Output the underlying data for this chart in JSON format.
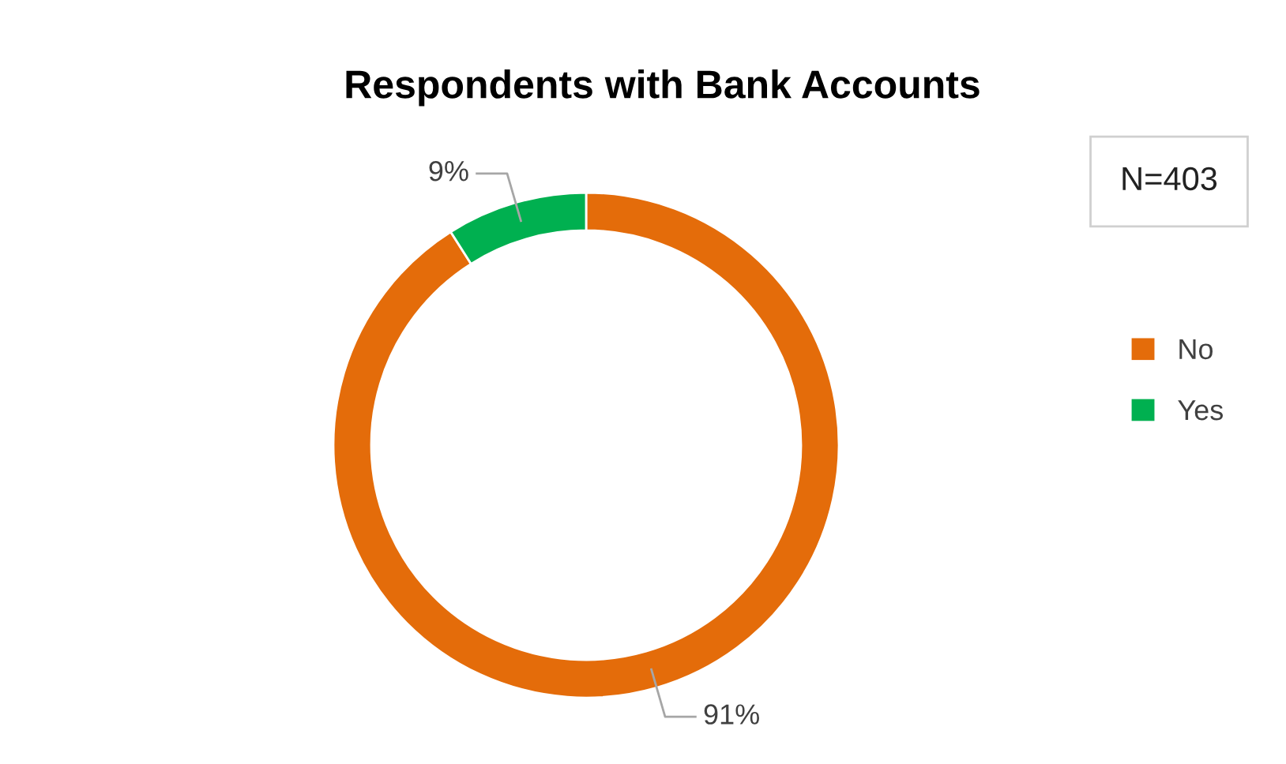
{
  "chart_data": {
    "type": "donut",
    "title": "Respondents with Bank Accounts",
    "categories": [
      "No",
      "Yes"
    ],
    "values": [
      91,
      9
    ],
    "colors": [
      "#e46c0a",
      "#00b050"
    ],
    "value_labels": [
      "91%",
      "9%"
    ],
    "annotations": [
      "N=403"
    ],
    "legend": "right"
  }
}
